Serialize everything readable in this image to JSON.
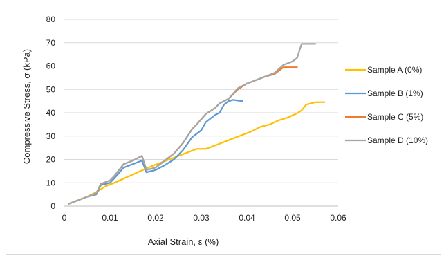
{
  "chart_data": {
    "type": "line",
    "title": "",
    "xlabel": "Axial Strain, ε (%)",
    "ylabel": "Compressive Stress, σ (kPa)",
    "xlim": [
      0,
      0.06
    ],
    "ylim": [
      0,
      80
    ],
    "xticks": [
      0,
      0.01,
      0.02,
      0.03,
      0.04,
      0.05,
      0.06
    ],
    "xtick_labels": [
      "0",
      "0.01",
      "0.02",
      "0.03",
      "0.04",
      "0.05",
      "0.06"
    ],
    "yticks": [
      0,
      10,
      20,
      30,
      40,
      50,
      60,
      70,
      80
    ],
    "ytick_labels": [
      "0",
      "10",
      "20",
      "30",
      "40",
      "50",
      "60",
      "70",
      "80"
    ],
    "grid": "horizontal",
    "legend_position": "right",
    "series": [
      {
        "name": "Sample A (0%)",
        "color": "#FFC000",
        "x": [
          0.001,
          0.003,
          0.005,
          0.007,
          0.009,
          0.011,
          0.013,
          0.015,
          0.017,
          0.019,
          0.021,
          0.023,
          0.025,
          0.027,
          0.029,
          0.031,
          0.033,
          0.035,
          0.037,
          0.039,
          0.041,
          0.043,
          0.045,
          0.047,
          0.049,
          0.051,
          0.052,
          0.053,
          0.055,
          0.057
        ],
        "y": [
          1,
          2.5,
          4,
          6,
          8.5,
          10,
          11.8,
          13.5,
          15.3,
          17,
          18.5,
          20,
          21.5,
          23,
          24.5,
          24.5,
          26,
          27.5,
          29,
          30.5,
          32,
          34,
          35,
          36.8,
          38,
          39.8,
          41,
          43.5,
          44.5,
          44.5
        ]
      },
      {
        "name": "Sample B (1%)",
        "color": "#5B9BD5",
        "x": [
          0.001,
          0.003,
          0.005,
          0.007,
          0.008,
          0.01,
          0.011,
          0.013,
          0.015,
          0.017,
          0.018,
          0.02,
          0.022,
          0.024,
          0.026,
          0.028,
          0.03,
          0.031,
          0.033,
          0.034,
          0.035,
          0.036,
          0.037,
          0.038,
          0.039
        ],
        "y": [
          1,
          2.5,
          4,
          5,
          9,
          10,
          12,
          16.5,
          18,
          19.5,
          14.5,
          15.5,
          17.5,
          20,
          24,
          29.5,
          32.5,
          36,
          39,
          40,
          43.5,
          45,
          45.5,
          45.2,
          45
        ]
      },
      {
        "name": "Sample C (5%)",
        "color": "#ED7D31",
        "x": [
          0.001,
          0.003,
          0.005,
          0.007,
          0.008,
          0.01,
          0.011,
          0.013,
          0.015,
          0.017,
          0.018,
          0.02,
          0.022,
          0.024,
          0.026,
          0.028,
          0.029,
          0.031,
          0.033,
          0.034,
          0.036,
          0.038,
          0.04,
          0.042,
          0.044,
          0.046,
          0.048,
          0.05,
          0.051
        ],
        "y": [
          1,
          2.5,
          4,
          5.5,
          9.5,
          11,
          13,
          18,
          19.5,
          21.5,
          15.5,
          16.5,
          19.5,
          22.5,
          27,
          33,
          35,
          39.5,
          42,
          44,
          46,
          50,
          52.5,
          54,
          55.5,
          56.5,
          59.5,
          59.5,
          59.5
        ]
      },
      {
        "name": "Sample D (10%)",
        "color": "#A5A5A5",
        "x": [
          0.001,
          0.003,
          0.005,
          0.007,
          0.008,
          0.01,
          0.011,
          0.013,
          0.015,
          0.017,
          0.018,
          0.02,
          0.022,
          0.024,
          0.026,
          0.028,
          0.029,
          0.031,
          0.033,
          0.034,
          0.036,
          0.038,
          0.04,
          0.042,
          0.044,
          0.046,
          0.048,
          0.05,
          0.051,
          0.052,
          0.053,
          0.055
        ],
        "y": [
          1,
          2.5,
          4,
          5.5,
          9.5,
          11,
          13,
          18,
          19.5,
          21.5,
          15.5,
          16.5,
          19.5,
          22.5,
          27,
          33,
          35,
          39.5,
          42,
          44,
          46,
          50.5,
          52.5,
          54,
          55.5,
          57,
          60.5,
          62,
          63.5,
          69.5,
          69.5,
          69.5
        ]
      }
    ]
  }
}
